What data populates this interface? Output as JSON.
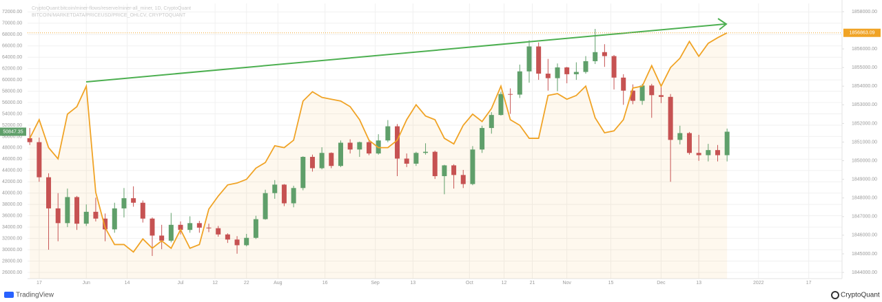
{
  "chart_data": {
    "type": "candlestick",
    "title": "CryptoQuant:bitcoin/miner-flows/reserve/miner-all_miner, 1D, CryptoQuant",
    "subtitle": "BITCOIN/MARKETDATA/PRICEUSD/PRICE_OHLCV, CRYPTOQUANT",
    "x": [
      -3,
      0,
      3,
      6,
      9,
      12,
      15,
      18,
      21,
      24,
      27,
      30,
      33,
      36,
      39,
      42,
      45,
      48,
      51,
      54,
      57,
      60,
      63,
      66,
      69,
      72,
      75,
      78,
      81,
      84,
      87,
      90,
      93,
      96,
      99,
      102,
      105,
      108,
      111,
      114,
      117,
      120,
      123,
      126,
      129,
      132,
      135,
      138,
      141,
      144,
      147,
      150,
      153,
      156,
      159,
      162,
      165,
      168,
      171,
      174,
      177,
      180,
      183,
      186,
      189,
      192,
      195,
      198,
      201,
      204,
      207,
      210,
      213,
      216,
      219
    ],
    "candles": {
      "up_color": "#5f9f6a",
      "down_color": "#c65252",
      "open": [
        49700,
        49000,
        42800,
        37300,
        34700,
        39300,
        34600,
        36700,
        35500,
        33600,
        37300,
        39100,
        38300,
        35500,
        32500,
        31600,
        34400,
        33500,
        34700,
        33900,
        33800,
        32700,
        31800,
        30800,
        32100,
        35400,
        40000,
        41500,
        38200,
        40900,
        46400,
        44400,
        47100,
        44800,
        48900,
        47700,
        49000,
        47000,
        49300,
        51800,
        46100,
        45200,
        47100,
        47300,
        43000,
        44900,
        43200,
        41600,
        47700,
        51500,
        53800,
        57500,
        57400,
        61500,
        65900,
        61100,
        60300,
        62200,
        61000,
        61400,
        63300,
        64900,
        64200,
        60400,
        58100,
        56300,
        59000,
        57300,
        57000,
        49400,
        50600,
        47100,
        46700,
        47600,
        46700
      ],
      "high": [
        51500,
        49800,
        43500,
        40000,
        40800,
        39500,
        38000,
        39200,
        36400,
        38300,
        40900,
        41200,
        38700,
        35700,
        34400,
        36500,
        35000,
        35900,
        35100,
        34600,
        34200,
        32900,
        32400,
        32800,
        36000,
        40600,
        42300,
        41600,
        41300,
        46500,
        46800,
        48100,
        47200,
        49300,
        49500,
        49100,
        49500,
        50400,
        52900,
        52200,
        47000,
        47300,
        48800,
        47500,
        45000,
        45100,
        44100,
        48300,
        51900,
        54300,
        57900,
        58500,
        62700,
        67000,
        66600,
        63700,
        62900,
        62300,
        63100,
        64200,
        69000,
        66300,
        64400,
        61000,
        59200,
        59300,
        59300,
        59000,
        57500,
        51900,
        50800,
        50300,
        48700,
        48500,
        51400
      ],
      "low": [
        48500,
        42000,
        30000,
        31500,
        34000,
        33500,
        34200,
        35000,
        31500,
        33000,
        35700,
        37600,
        34800,
        28900,
        30100,
        31300,
        32700,
        33000,
        33000,
        33100,
        32300,
        31200,
        29300,
        30600,
        31900,
        35300,
        39000,
        37700,
        37500,
        40500,
        43800,
        44200,
        44400,
        44600,
        47000,
        46400,
        46700,
        46800,
        49000,
        43000,
        44600,
        44800,
        46800,
        42500,
        39800,
        40800,
        40900,
        41400,
        47100,
        50500,
        53700,
        54000,
        56800,
        59500,
        60000,
        58100,
        58000,
        59400,
        60000,
        61100,
        62800,
        62300,
        58300,
        55600,
        55700,
        55600,
        53300,
        55900,
        42000,
        48600,
        46800,
        45700,
        45600,
        45600,
        45600
      ],
      "close": [
        49000,
        42800,
        37300,
        34700,
        39300,
        34600,
        36700,
        35500,
        33600,
        37300,
        39100,
        38300,
        35500,
        32500,
        31600,
        34400,
        33500,
        34700,
        33900,
        33800,
        32700,
        31800,
        30800,
        32100,
        35400,
        40000,
        41500,
        38200,
        40900,
        46400,
        44400,
        47100,
        44800,
        48900,
        47700,
        49000,
        47000,
        49300,
        51800,
        46100,
        45200,
        47100,
        47300,
        43000,
        44900,
        43200,
        41600,
        47700,
        51500,
        53800,
        57500,
        57400,
        61500,
        65900,
        61100,
        60300,
        62200,
        61000,
        61400,
        63300,
        64900,
        64200,
        60400,
        58100,
        56300,
        59000,
        57300,
        57000,
        49400,
        50600,
        47100,
        46700,
        47600,
        46700,
        50847.35
      ]
    },
    "series": [
      {
        "name": "CryptoQuant:bitcoin/miner-flows/reserve/miner-all_miner, 1D, CryptoQuant",
        "color": "#f0a325",
        "axis": "y2",
        "values": [
          1851200,
          1852200,
          1850700,
          1850100,
          1852500,
          1852900,
          1854000,
          1848300,
          1846400,
          1845500,
          1845500,
          1845100,
          1845800,
          1845300,
          1845700,
          1845300,
          1846300,
          1845300,
          1845500,
          1847400,
          1848100,
          1848700,
          1848800,
          1849000,
          1849600,
          1849900,
          1850800,
          1850700,
          1851100,
          1853200,
          1853700,
          1853400,
          1853300,
          1853200,
          1852900,
          1852200,
          1851100,
          1850700,
          1850700,
          1851100,
          1852200,
          1853000,
          1852400,
          1852200,
          1851200,
          1850900,
          1851900,
          1852500,
          1852100,
          1852800,
          1854000,
          1852200,
          1851900,
          1851200,
          1851200,
          1853500,
          1853600,
          1853300,
          1853500,
          1854000,
          1852300,
          1851500,
          1851600,
          1852200,
          1853900,
          1854000,
          1855100,
          1854000,
          1855000,
          1855500,
          1856400,
          1855600,
          1856300,
          1856600,
          1856863.09
        ]
      }
    ],
    "xlim": [
      -3.7,
      255.6
    ],
    "xticks": [
      {
        "value": 0,
        "label": "17"
      },
      {
        "value": 15,
        "label": "Jun"
      },
      {
        "value": 28,
        "label": "14"
      },
      {
        "value": 45,
        "label": "Jul"
      },
      {
        "value": 56,
        "label": "12"
      },
      {
        "value": 66,
        "label": "22"
      },
      {
        "value": 76,
        "label": "Aug"
      },
      {
        "value": 91,
        "label": "16"
      },
      {
        "value": 107,
        "label": "Sep"
      },
      {
        "value": 119,
        "label": "13"
      },
      {
        "value": 137,
        "label": "Oct"
      },
      {
        "value": 148,
        "label": "12"
      },
      {
        "value": 157,
        "label": "21"
      },
      {
        "value": 168,
        "label": "Nov"
      },
      {
        "value": 182,
        "label": "15"
      },
      {
        "value": 198,
        "label": "Dec"
      },
      {
        "value": 210,
        "label": "13"
      },
      {
        "value": 229,
        "label": "2022"
      },
      {
        "value": 245,
        "label": "17"
      }
    ],
    "ylim": [
      24900,
      73500
    ],
    "yticks": [
      {
        "value": 26000,
        "label": "26000.00"
      },
      {
        "value": 28000,
        "label": "28000.00"
      },
      {
        "value": 30000,
        "label": "30000.00"
      },
      {
        "value": 32000,
        "label": "32000.00"
      },
      {
        "value": 34000,
        "label": "34000.00"
      },
      {
        "value": 36000,
        "label": "36000.00"
      },
      {
        "value": 38000,
        "label": "38000.00"
      },
      {
        "value": 40000,
        "label": "40000.00"
      },
      {
        "value": 42000,
        "label": "42000.00"
      },
      {
        "value": 44000,
        "label": "44000.00"
      },
      {
        "value": 46000,
        "label": "46000.00"
      },
      {
        "value": 48000,
        "label": "48000.00"
      },
      {
        "value": 50000,
        "label": "50000.00"
      },
      {
        "value": 52000,
        "label": "52000.00"
      },
      {
        "value": 54000,
        "label": "54000.00"
      },
      {
        "value": 56000,
        "label": "56000.00"
      },
      {
        "value": 58000,
        "label": "58000.00"
      },
      {
        "value": 60000,
        "label": "60000.00"
      },
      {
        "value": 62000,
        "label": "62000.00"
      },
      {
        "value": 64000,
        "label": "64000.00"
      },
      {
        "value": 66000,
        "label": "66000.00"
      },
      {
        "value": 68000,
        "label": "68000.00"
      },
      {
        "value": 70000,
        "label": "70000.00"
      },
      {
        "value": 72000,
        "label": "72000.00"
      }
    ],
    "y2lim": [
      1843670,
      1858440
    ],
    "y2ticks": [
      {
        "value": 1844000,
        "label": "1844000.00"
      },
      {
        "value": 1845000,
        "label": "1845000.00"
      },
      {
        "value": 1846000,
        "label": "1846000.00"
      },
      {
        "value": 1847000,
        "label": "1847000.00"
      },
      {
        "value": 1848000,
        "label": "1848000.00"
      },
      {
        "value": 1849000,
        "label": "1849000.00"
      },
      {
        "value": 1850000,
        "label": "1850000.00"
      },
      {
        "value": 1851000,
        "label": "1851000.00"
      },
      {
        "value": 1852000,
        "label": "1852000.00"
      },
      {
        "value": 1853000,
        "label": "1853000.00"
      },
      {
        "value": 1854000,
        "label": "1854000.00"
      },
      {
        "value": 1855000,
        "label": "1855000.00"
      },
      {
        "value": 1856000,
        "label": "1856000.00"
      },
      {
        "value": 1858000,
        "label": "1858000.00"
      }
    ],
    "grid": true
  },
  "footer": {
    "left": "TradingView",
    "right": "CryptoQuant"
  }
}
